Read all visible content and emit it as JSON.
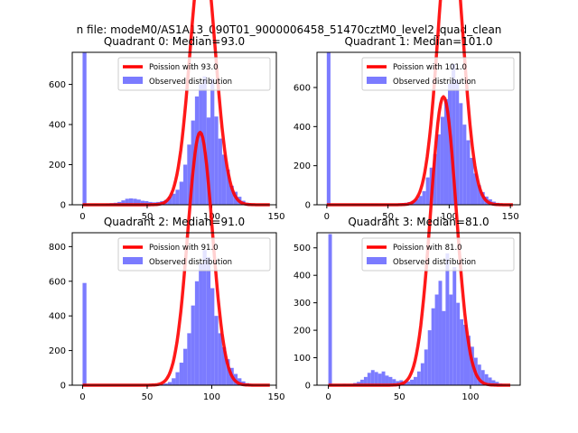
{
  "suptitle": "n file: modeM0/AS1A13_090T01_9000006458_51470cztM0_level2_quad_clean",
  "colors": {
    "bar": "#7b7bff",
    "line": "#ff0000",
    "frame": "#000000"
  },
  "chart_data": [
    {
      "type": "bar",
      "title": "Quadrant 0: Median=93.0",
      "median": 93.0,
      "xlim": [
        -8,
        150
      ],
      "ylim": [
        0,
        760
      ],
      "xticks": [
        0,
        50,
        100,
        150
      ],
      "yticks": [
        0,
        200,
        400,
        600
      ],
      "legend": {
        "placement": "top-right",
        "line_label": "Poission with 93.0",
        "bar_label": "Observed distribution"
      },
      "bin_width": 3,
      "hist": [
        [
          0,
          760
        ],
        [
          3,
          2
        ],
        [
          6,
          2
        ],
        [
          9,
          3
        ],
        [
          12,
          2
        ],
        [
          15,
          3
        ],
        [
          18,
          6
        ],
        [
          21,
          8
        ],
        [
          24,
          10
        ],
        [
          27,
          14
        ],
        [
          30,
          22
        ],
        [
          33,
          30
        ],
        [
          36,
          32
        ],
        [
          39,
          30
        ],
        [
          42,
          26
        ],
        [
          45,
          20
        ],
        [
          48,
          18
        ],
        [
          51,
          14
        ],
        [
          54,
          12
        ],
        [
          57,
          14
        ],
        [
          60,
          18
        ],
        [
          63,
          24
        ],
        [
          66,
          40
        ],
        [
          69,
          55
        ],
        [
          72,
          75
        ],
        [
          75,
          115
        ],
        [
          78,
          200
        ],
        [
          81,
          300
        ],
        [
          84,
          420
        ],
        [
          87,
          540
        ],
        [
          90,
          600
        ],
        [
          93,
          640
        ],
        [
          96,
          435
        ],
        [
          99,
          630
        ],
        [
          102,
          440
        ],
        [
          105,
          330
        ],
        [
          108,
          250
        ],
        [
          111,
          175
        ],
        [
          114,
          95
        ],
        [
          117,
          65
        ],
        [
          120,
          40
        ],
        [
          123,
          20
        ],
        [
          126,
          10
        ],
        [
          129,
          6
        ],
        [
          132,
          3
        ],
        [
          135,
          2
        ],
        [
          138,
          1
        ],
        [
          141,
          1
        ]
      ],
      "poisson_mean": 93.0,
      "poisson_scale": 31072,
      "poisson_range": [
        0,
        145
      ]
    },
    {
      "type": "bar",
      "title": "Quadrant 1: Median=101.0",
      "median": 101.0,
      "xlim": [
        -8,
        158
      ],
      "ylim": [
        0,
        780
      ],
      "xticks": [
        0,
        50,
        100,
        150
      ],
      "yticks": [
        0,
        200,
        400,
        600
      ],
      "legend": {
        "placement": "top-right",
        "line_label": "Poission with 101.0",
        "bar_label": "Observed distribution"
      },
      "bin_width": 3,
      "hist": [
        [
          0,
          780
        ],
        [
          3,
          2
        ],
        [
          6,
          1
        ],
        [
          9,
          1
        ],
        [
          12,
          2
        ],
        [
          15,
          2
        ],
        [
          18,
          2
        ],
        [
          21,
          3
        ],
        [
          24,
          3
        ],
        [
          27,
          4
        ],
        [
          30,
          4
        ],
        [
          33,
          4
        ],
        [
          36,
          5
        ],
        [
          39,
          5
        ],
        [
          42,
          4
        ],
        [
          45,
          4
        ],
        [
          48,
          4
        ],
        [
          51,
          4
        ],
        [
          54,
          4
        ],
        [
          57,
          6
        ],
        [
          60,
          8
        ],
        [
          63,
          10
        ],
        [
          66,
          14
        ],
        [
          69,
          20
        ],
        [
          72,
          30
        ],
        [
          75,
          45
        ],
        [
          78,
          70
        ],
        [
          81,
          140
        ],
        [
          84,
          190
        ],
        [
          87,
          260
        ],
        [
          90,
          360
        ],
        [
          93,
          450
        ],
        [
          96,
          540
        ],
        [
          99,
          620
        ],
        [
          102,
          720
        ],
        [
          105,
          640
        ],
        [
          108,
          520
        ],
        [
          111,
          410
        ],
        [
          114,
          330
        ],
        [
          117,
          240
        ],
        [
          120,
          160
        ],
        [
          123,
          100
        ],
        [
          126,
          65
        ],
        [
          129,
          42
        ],
        [
          132,
          28
        ],
        [
          135,
          16
        ],
        [
          138,
          10
        ],
        [
          141,
          6
        ],
        [
          144,
          3
        ],
        [
          147,
          2
        ],
        [
          150,
          1
        ]
      ],
      "poisson_mean": 101.0,
      "poisson_scale": 36734,
      "poisson_range": [
        0,
        152
      ]
    },
    {
      "type": "bar",
      "title": "Quadrant 2: Median=91.0",
      "median": 91.0,
      "xlim": [
        -8,
        150
      ],
      "ylim": [
        0,
        880
      ],
      "xticks": [
        0,
        50,
        100,
        150
      ],
      "yticks": [
        0,
        200,
        400,
        600,
        800
      ],
      "legend": {
        "placement": "top-right",
        "line_label": "Poission with 91.0",
        "bar_label": "Observed distribution"
      },
      "bin_width": 3,
      "hist": [
        [
          0,
          590
        ],
        [
          3,
          2
        ],
        [
          6,
          2
        ],
        [
          9,
          2
        ],
        [
          12,
          2
        ],
        [
          15,
          2
        ],
        [
          18,
          3
        ],
        [
          21,
          3
        ],
        [
          24,
          3
        ],
        [
          27,
          3
        ],
        [
          30,
          3
        ],
        [
          33,
          3
        ],
        [
          36,
          3
        ],
        [
          39,
          3
        ],
        [
          42,
          3
        ],
        [
          45,
          3
        ],
        [
          48,
          3
        ],
        [
          51,
          3
        ],
        [
          54,
          3
        ],
        [
          57,
          4
        ],
        [
          60,
          6
        ],
        [
          63,
          10
        ],
        [
          66,
          18
        ],
        [
          69,
          40
        ],
        [
          72,
          75
        ],
        [
          75,
          130
        ],
        [
          78,
          210
        ],
        [
          81,
          300
        ],
        [
          84,
          460
        ],
        [
          87,
          600
        ],
        [
          90,
          700
        ],
        [
          93,
          780
        ],
        [
          96,
          740
        ],
        [
          99,
          560
        ],
        [
          102,
          400
        ],
        [
          105,
          300
        ],
        [
          108,
          220
        ],
        [
          111,
          150
        ],
        [
          114,
          100
        ],
        [
          117,
          65
        ],
        [
          120,
          40
        ],
        [
          123,
          22
        ],
        [
          126,
          12
        ],
        [
          129,
          6
        ],
        [
          132,
          3
        ],
        [
          135,
          2
        ]
      ],
      "poisson_mean": 91.0,
      "poisson_scale": 34902,
      "poisson_range": [
        0,
        145
      ]
    },
    {
      "type": "bar",
      "title": "Quadrant 3: Median=81.0",
      "median": 81.0,
      "xlim": [
        -8,
        135
      ],
      "ylim": [
        0,
        555
      ],
      "xticks": [
        0,
        50,
        100
      ],
      "yticks": [
        0,
        100,
        200,
        300,
        400,
        500
      ],
      "legend": {
        "placement": "top-right",
        "line_label": "Poission with 81.0",
        "bar_label": "Observed distribution"
      },
      "bin_width": 2.5,
      "hist": [
        [
          0,
          550
        ],
        [
          2.5,
          3
        ],
        [
          5,
          3
        ],
        [
          7.5,
          3
        ],
        [
          10,
          5
        ],
        [
          12.5,
          4
        ],
        [
          15,
          5
        ],
        [
          17.5,
          8
        ],
        [
          20,
          12
        ],
        [
          22.5,
          20
        ],
        [
          25,
          30
        ],
        [
          27.5,
          45
        ],
        [
          30,
          55
        ],
        [
          32.5,
          48
        ],
        [
          35,
          42
        ],
        [
          37.5,
          50
        ],
        [
          40,
          35
        ],
        [
          42.5,
          30
        ],
        [
          45,
          22
        ],
        [
          47.5,
          15
        ],
        [
          50,
          18
        ],
        [
          52.5,
          12
        ],
        [
          55,
          14
        ],
        [
          57.5,
          20
        ],
        [
          60,
          30
        ],
        [
          62.5,
          50
        ],
        [
          65,
          80
        ],
        [
          67.5,
          130
        ],
        [
          70,
          200
        ],
        [
          72.5,
          280
        ],
        [
          75,
          330
        ],
        [
          77.5,
          380
        ],
        [
          80,
          270
        ],
        [
          82.5,
          480
        ],
        [
          85,
          330
        ],
        [
          87.5,
          430
        ],
        [
          90,
          300
        ],
        [
          92.5,
          240
        ],
        [
          95,
          220
        ],
        [
          97.5,
          180
        ],
        [
          100,
          140
        ],
        [
          102.5,
          100
        ],
        [
          105,
          75
        ],
        [
          107.5,
          55
        ],
        [
          110,
          40
        ],
        [
          112.5,
          28
        ],
        [
          115,
          18
        ],
        [
          117.5,
          12
        ],
        [
          120,
          6
        ],
        [
          122.5,
          4
        ],
        [
          125,
          2
        ]
      ],
      "poisson_mean": 81.0,
      "poisson_scale": 23696,
      "poisson_range": [
        0,
        128
      ]
    }
  ]
}
